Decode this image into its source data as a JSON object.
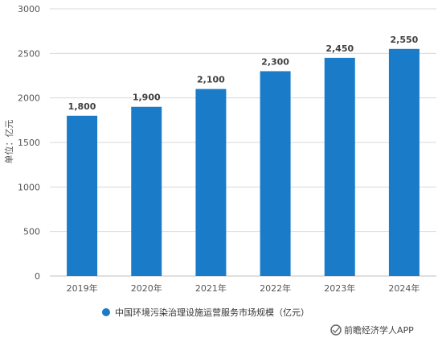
{
  "chart_data": {
    "type": "bar",
    "categories": [
      "2019年",
      "2020年",
      "2021年",
      "2022年",
      "2023年",
      "2024年"
    ],
    "values": [
      1800,
      1900,
      2100,
      2300,
      2450,
      2550
    ],
    "value_labels": [
      "1,800",
      "1,900",
      "2,100",
      "2,300",
      "2,450",
      "2,550"
    ],
    "ylabel": "单位：亿元",
    "ylim": [
      0,
      3000
    ],
    "yticks": [
      0,
      500,
      1000,
      1500,
      2000,
      2500,
      3000
    ],
    "grid": true,
    "legend": {
      "position": "bottom",
      "label": "中国环境污染治理设施运营服务市场规模（亿元）"
    },
    "bar_color": "#1a7cc9"
  },
  "watermark": {
    "text": "前瞻经济学人APP"
  }
}
